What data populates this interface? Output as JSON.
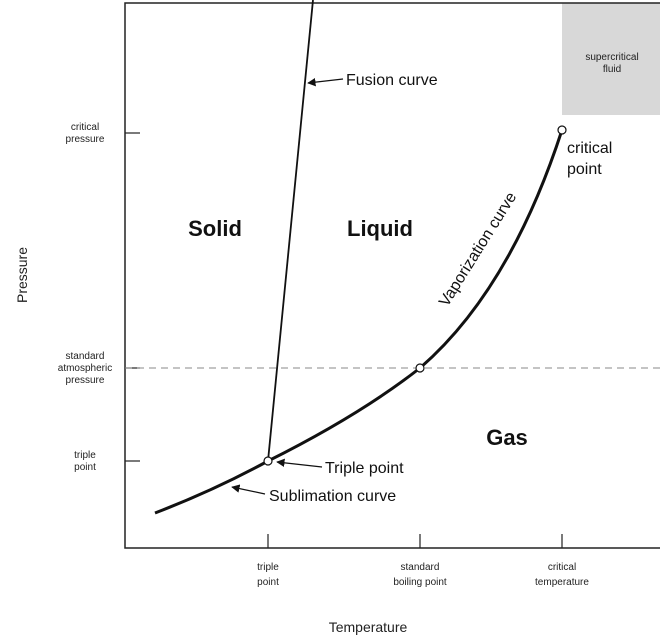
{
  "axes": {
    "y_label": "Pressure",
    "x_label": "Temperature",
    "y_ticks": [
      [
        "critical",
        "pressure"
      ],
      [
        "standard",
        "atmospheric",
        "pressure"
      ],
      [
        "triple",
        "point"
      ]
    ],
    "x_ticks": [
      [
        "triple",
        "point"
      ],
      [
        "standard",
        "boiling point"
      ],
      [
        "critical",
        "temperature"
      ]
    ]
  },
  "regions": {
    "solid": "Solid",
    "liquid": "Liquid",
    "gas": "Gas",
    "supercritical": [
      "supercritical",
      "fluid"
    ]
  },
  "curves": {
    "fusion": "Fusion curve",
    "vaporization": "Vaporization curve",
    "sublimation": "Sublimation curve"
  },
  "points": {
    "triple": "Triple point",
    "critical": [
      "critical",
      "point"
    ]
  }
}
